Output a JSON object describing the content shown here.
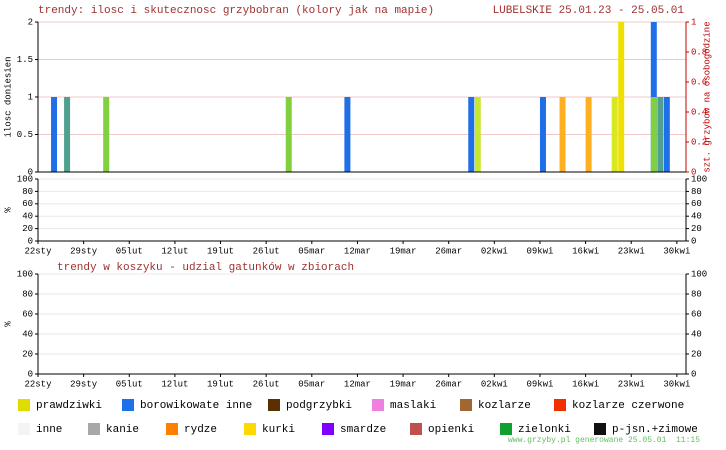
{
  "chart_data": [
    {
      "type": "bar",
      "title": "trendy: ilosc i skutecznosc grzybobran (kolory jak na mapie)",
      "subtitle": "LUBELSKIE 25.01.23 - 25.05.01",
      "ylabel": "ilosc doniesien",
      "y2label": "szt. grzybow na osobogodzine",
      "x": [
        2,
        4,
        10,
        38,
        47,
        66,
        67,
        77,
        80,
        84,
        88,
        89,
        94,
        94,
        95,
        96
      ],
      "values": [
        1,
        1,
        1,
        1,
        1,
        1,
        1,
        1,
        1,
        1,
        1,
        2,
        2,
        1,
        1,
        1
      ],
      "colors": [
        "#1f6fe8",
        "#50a090",
        "#80d040",
        "#80d040",
        "#1f6fe8",
        "#1f6fe8",
        "#c8e830",
        "#1f6fe8",
        "#ffb020",
        "#ffb020",
        "#d8e820",
        "#f0e000",
        "#1f6fe8",
        "#80d040",
        "#50a090",
        "#1f6fe8"
      ],
      "xlim": [
        0,
        99.4
      ],
      "ylim": [
        0,
        2
      ],
      "yticks": [
        0,
        0.5,
        1,
        1.5,
        2
      ],
      "y2lim": [
        0,
        1
      ],
      "y2ticks": [
        0,
        0.2,
        0.4,
        0.6,
        0.8,
        1
      ],
      "grid": true
    },
    {
      "type": "bar",
      "ylabel": "%",
      "xlim": [
        0,
        99.4
      ],
      "ylim": [
        0,
        100
      ],
      "yticks": [
        0,
        20,
        40,
        60,
        80,
        100
      ],
      "y2ticks": [
        0,
        20,
        40,
        60,
        80,
        100
      ],
      "xticks": [
        {
          "value": 0,
          "label": "22sty"
        },
        {
          "value": 7,
          "label": "29sty"
        },
        {
          "value": 14,
          "label": "05lut"
        },
        {
          "value": 21,
          "label": "12lut"
        },
        {
          "value": 28,
          "label": "19lut"
        },
        {
          "value": 35,
          "label": "26lut"
        },
        {
          "value": 42,
          "label": "05mar"
        },
        {
          "value": 49,
          "label": "12mar"
        },
        {
          "value": 56,
          "label": "19mar"
        },
        {
          "value": 63,
          "label": "26mar"
        },
        {
          "value": 70,
          "label": "02kwi"
        },
        {
          "value": 77,
          "label": "09kwi"
        },
        {
          "value": 84,
          "label": "16kwi"
        },
        {
          "value": 91,
          "label": "23kwi"
        },
        {
          "value": 98,
          "label": "30kwi"
        }
      ],
      "grid": true
    },
    {
      "type": "bar",
      "title": "trendy w koszyku - udzial gatunków w zbiorach",
      "ylabel": "%",
      "xlim": [
        0,
        99.4
      ],
      "ylim": [
        0,
        100
      ],
      "yticks": [
        0,
        20,
        40,
        60,
        80,
        100
      ],
      "y2ticks": [
        0,
        20,
        40,
        60,
        80,
        100
      ],
      "xticks": [
        {
          "value": 0,
          "label": "22sty"
        },
        {
          "value": 7,
          "label": "29sty"
        },
        {
          "value": 14,
          "label": "05lut"
        },
        {
          "value": 21,
          "label": "12lut"
        },
        {
          "value": 28,
          "label": "19lut"
        },
        {
          "value": 35,
          "label": "26lut"
        },
        {
          "value": 42,
          "label": "05mar"
        },
        {
          "value": 49,
          "label": "12mar"
        },
        {
          "value": 56,
          "label": "19mar"
        },
        {
          "value": 63,
          "label": "26mar"
        },
        {
          "value": 70,
          "label": "02kwi"
        },
        {
          "value": 77,
          "label": "09kwi"
        },
        {
          "value": 84,
          "label": "16kwi"
        },
        {
          "value": 91,
          "label": "23kwi"
        },
        {
          "value": 98,
          "label": "30kwi"
        }
      ],
      "series": [
        {
          "name": "prawdziwki",
          "color": "#e0dc00",
          "values": []
        },
        {
          "name": "borowikowate inne",
          "color": "#1f6fe8",
          "values": []
        },
        {
          "name": "podgrzybki",
          "color": "#5a3000",
          "values": []
        },
        {
          "name": "maslaki",
          "color": "#f080e0",
          "values": []
        },
        {
          "name": "kozlarze",
          "color": "#a06830",
          "values": []
        },
        {
          "name": "kozlarze czerwone",
          "color": "#f03000",
          "values": []
        },
        {
          "name": "inne",
          "color": "#f4f4f4",
          "values": []
        },
        {
          "name": "kanie",
          "color": "#a8a8a8",
          "values": []
        },
        {
          "name": "rydze",
          "color": "#ff8000",
          "values": []
        },
        {
          "name": "kurki",
          "color": "#ffd800",
          "values": []
        },
        {
          "name": "smardze",
          "color": "#8000ff",
          "values": []
        },
        {
          "name": "opienki",
          "color": "#c05050",
          "values": []
        },
        {
          "name": "zielonki",
          "color": "#10a030",
          "values": []
        },
        {
          "name": "p-jsn.+zimowe",
          "color": "#101010",
          "values": []
        }
      ],
      "grid": true
    }
  ],
  "footer": "www.grzyby.pl generowane 25.05.01  11:15"
}
